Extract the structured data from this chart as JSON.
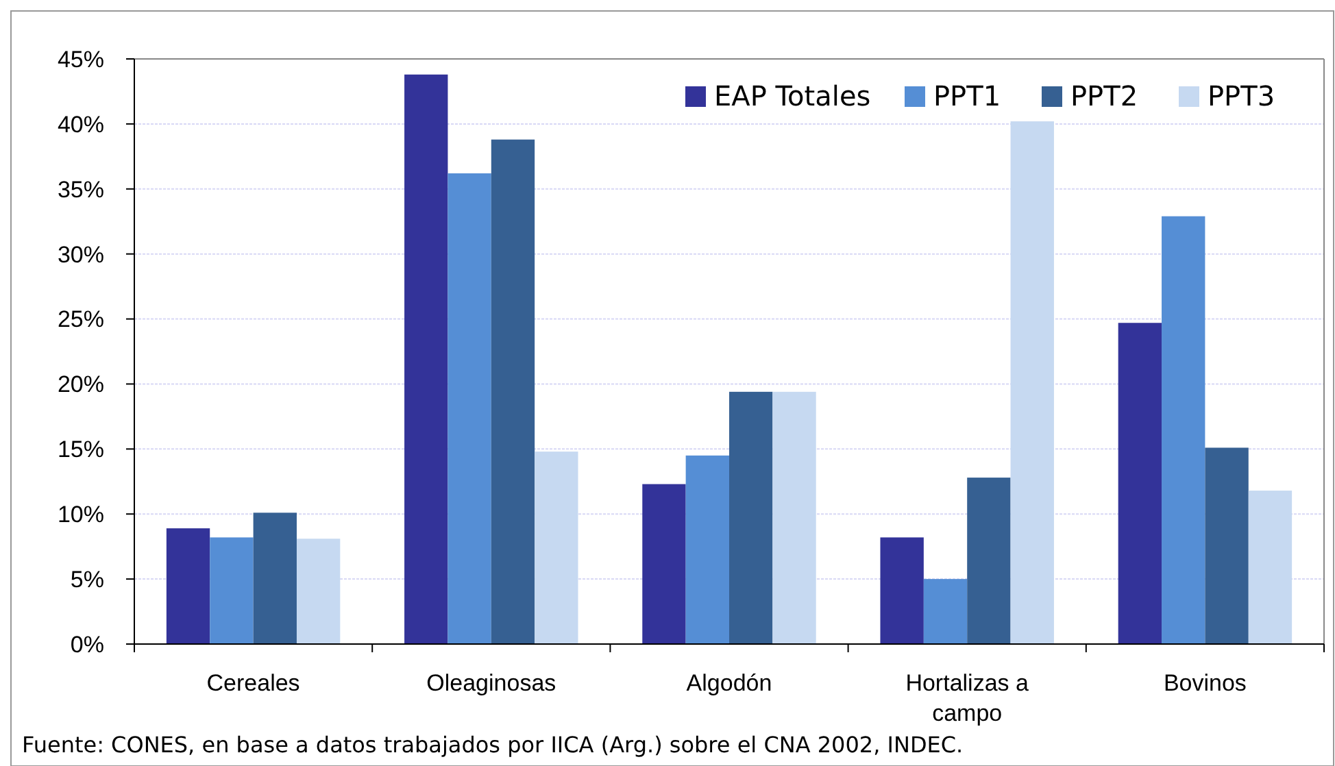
{
  "chart_data": {
    "type": "bar",
    "categories": [
      "Cereales",
      "Oleaginosas",
      "Algodón",
      "Hortalizas a campo",
      "Bovinos"
    ],
    "series": [
      {
        "name": "EAP Totales",
        "color": "#333399",
        "values": [
          8.9,
          43.8,
          12.3,
          8.2,
          24.7
        ]
      },
      {
        "name": "PPT1",
        "color": "#558ed5",
        "values": [
          8.2,
          36.2,
          14.5,
          5.0,
          32.9
        ]
      },
      {
        "name": "PPT2",
        "color": "#366092",
        "values": [
          10.1,
          38.8,
          19.4,
          12.8,
          15.1
        ]
      },
      {
        "name": "PPT3",
        "color": "#c6d9f1",
        "values": [
          8.1,
          14.8,
          19.4,
          40.2,
          11.8
        ]
      }
    ],
    "ylim": [
      0,
      45
    ],
    "yticks": [
      {
        "value": 0,
        "label": "0%"
      },
      {
        "value": 5,
        "label": "5%"
      },
      {
        "value": 10,
        "label": "10%"
      },
      {
        "value": 15,
        "label": "15%"
      },
      {
        "value": 20,
        "label": "20%"
      },
      {
        "value": 25,
        "label": "25%"
      },
      {
        "value": 30,
        "label": "30%"
      },
      {
        "value": 35,
        "label": "35%"
      },
      {
        "value": 40,
        "label": "40%"
      },
      {
        "value": 45,
        "label": "45%"
      }
    ],
    "grid": "y",
    "legend": "top right",
    "annotations": [
      "Fuente: CONES, en base a datos trabajados por IICA (Arg.) sobre el CNA 2002, INDEC."
    ]
  }
}
